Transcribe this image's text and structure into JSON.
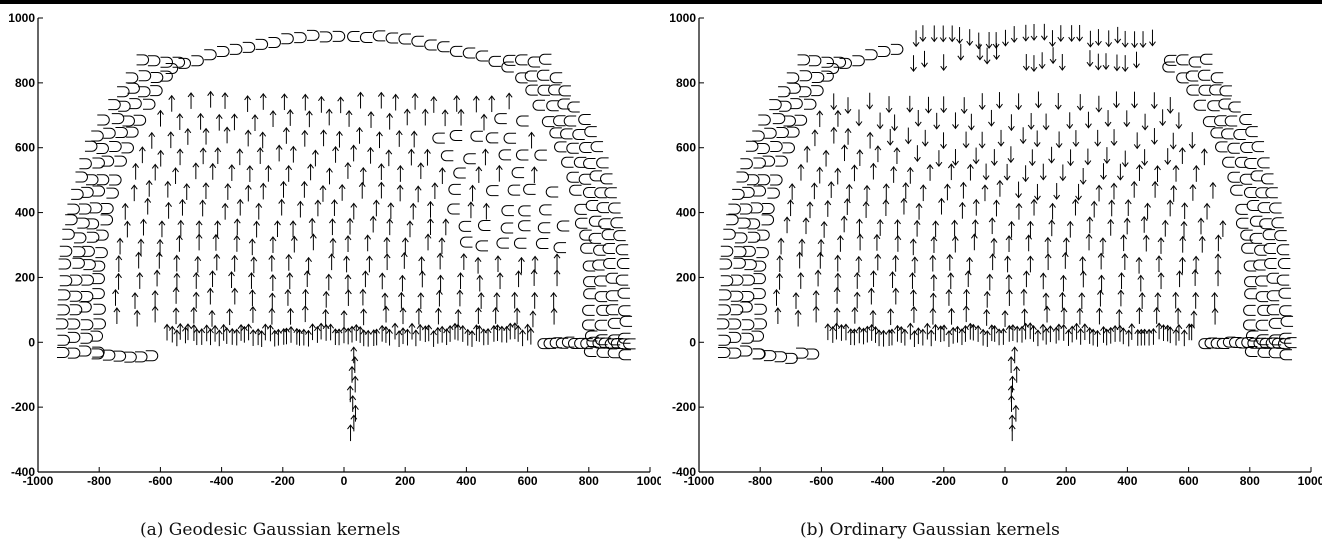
{
  "chart_data": [
    {
      "type": "scatter",
      "caption": "(a) Geodesic Gaussian kernels",
      "xlim": [
        -1000,
        1000
      ],
      "ylim": [
        -400,
        1000
      ],
      "xticks": [
        "-1000",
        "-800",
        "-600",
        "-400",
        "-200",
        "0",
        "200",
        "400",
        "600",
        "800",
        "1000"
      ],
      "yticks": [
        "-400",
        "-200",
        "0",
        "200",
        "400",
        "600",
        "800",
        "1000"
      ],
      "arrow_region": "interior-up",
      "marker_symbols": [
        "↑",
        "⊂",
        "⊃"
      ]
    },
    {
      "type": "scatter",
      "caption": "(b) Ordinary Gaussian kernels",
      "xlim": [
        -1000,
        1000
      ],
      "ylim": [
        -400,
        1000
      ],
      "xticks": [
        "-1000",
        "-800",
        "-600",
        "-400",
        "-200",
        "0",
        "200",
        "400",
        "600",
        "800",
        "1000"
      ],
      "yticks": [
        "-400",
        "-200",
        "0",
        "200",
        "400",
        "600",
        "800",
        "1000"
      ],
      "arrow_region": "interior-mixed",
      "marker_symbols": [
        "↑",
        "↓",
        "⊂",
        "⊃"
      ]
    }
  ]
}
